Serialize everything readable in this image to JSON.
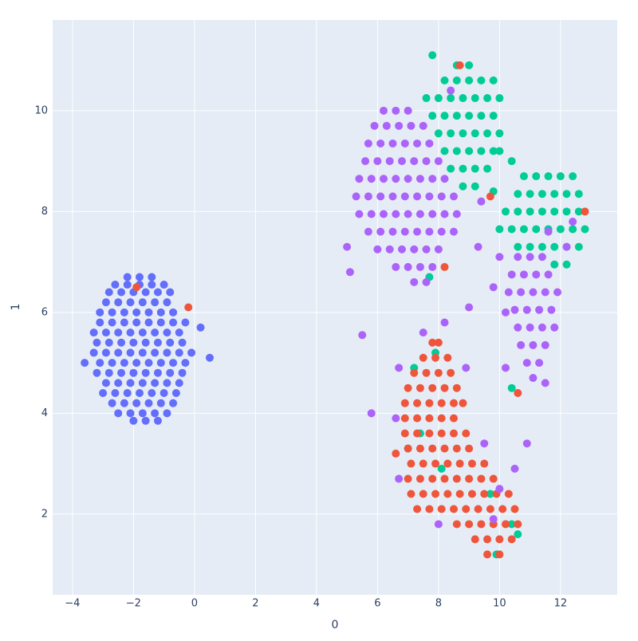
{
  "chart_data": {
    "type": "scatter",
    "x_label": "0",
    "y_label": "1",
    "xlim": [
      -4.65,
      13.86
    ],
    "ylim": [
      0.4,
      11.8
    ],
    "xticks": [
      {
        "value": -4,
        "label": "−4"
      },
      {
        "value": -2,
        "label": "−2"
      },
      0,
      2,
      4,
      6,
      8,
      10,
      12
    ],
    "yticks": [
      2,
      4,
      6,
      8,
      10
    ],
    "grid": true,
    "series": [
      {
        "color": "#636efa",
        "x": [
          -2.2,
          -1.8,
          -1.4,
          -2.6,
          -2.2,
          -1.8,
          -1.4,
          -1.0,
          -2.8,
          -2.4,
          -2.0,
          -1.6,
          -1.2,
          -0.8,
          -2.9,
          -2.5,
          -2.1,
          -1.7,
          -1.3,
          -0.9,
          -3.1,
          -2.7,
          -2.3,
          -1.9,
          -1.5,
          -1.1,
          -0.7,
          -3.1,
          -2.7,
          -2.3,
          -1.9,
          -1.5,
          -1.1,
          -0.7,
          -0.3,
          -3.3,
          -2.9,
          -2.5,
          -2.1,
          -1.7,
          -1.3,
          -0.9,
          -0.5,
          -3.2,
          -2.8,
          -2.4,
          -2.0,
          -1.6,
          -1.2,
          -0.8,
          -0.4,
          -3.3,
          -2.9,
          -2.5,
          -2.1,
          -1.7,
          -1.3,
          -0.9,
          -0.5,
          -0.1,
          -3.1,
          -2.7,
          -2.3,
          -1.9,
          -1.5,
          -1.1,
          -0.7,
          -0.3,
          -3.2,
          -2.8,
          -2.4,
          -2.0,
          -1.6,
          -1.2,
          -0.8,
          -0.4,
          -2.9,
          -2.5,
          -2.1,
          -1.7,
          -1.3,
          -0.9,
          -0.5,
          -3.0,
          -2.6,
          -2.2,
          -1.8,
          -1.4,
          -1.0,
          -0.6,
          -2.7,
          -2.3,
          -1.9,
          -1.5,
          -1.1,
          -0.7,
          -2.5,
          -2.1,
          -1.7,
          -1.3,
          -0.9,
          -2.0,
          -1.6,
          -1.2,
          0.5,
          0.2,
          -3.6
        ],
        "values": [
          6.7,
          6.7,
          6.7,
          6.55,
          6.55,
          6.55,
          6.55,
          6.55,
          6.4,
          6.4,
          6.4,
          6.4,
          6.4,
          6.4,
          6.2,
          6.2,
          6.2,
          6.2,
          6.2,
          6.2,
          6.0,
          6.0,
          6.0,
          6.0,
          6.0,
          6.0,
          6.0,
          5.8,
          5.8,
          5.8,
          5.8,
          5.8,
          5.8,
          5.8,
          5.8,
          5.6,
          5.6,
          5.6,
          5.6,
          5.6,
          5.6,
          5.6,
          5.6,
          5.4,
          5.4,
          5.4,
          5.4,
          5.4,
          5.4,
          5.4,
          5.4,
          5.2,
          5.2,
          5.2,
          5.2,
          5.2,
          5.2,
          5.2,
          5.2,
          5.2,
          5.0,
          5.0,
          5.0,
          5.0,
          5.0,
          5.0,
          5.0,
          5.0,
          4.8,
          4.8,
          4.8,
          4.8,
          4.8,
          4.8,
          4.8,
          4.8,
          4.6,
          4.6,
          4.6,
          4.6,
          4.6,
          4.6,
          4.6,
          4.4,
          4.4,
          4.4,
          4.4,
          4.4,
          4.4,
          4.4,
          4.2,
          4.2,
          4.2,
          4.2,
          4.2,
          4.2,
          4.0,
          4.0,
          4.0,
          4.0,
          4.0,
          3.85,
          3.85,
          3.85,
          5.1,
          5.7,
          5.0
        ]
      },
      {
        "color": "#00cc96",
        "x": [
          8.6,
          9.0,
          8.2,
          8.6,
          9.0,
          9.4,
          9.8,
          7.6,
          8.0,
          8.4,
          8.8,
          9.2,
          9.6,
          10.0,
          7.8,
          8.2,
          8.6,
          9.0,
          9.4,
          9.8,
          8.0,
          8.4,
          8.8,
          9.2,
          9.6,
          10.0,
          8.2,
          8.6,
          9.0,
          9.4,
          9.8,
          8.4,
          8.8,
          9.2,
          9.6,
          8.8,
          9.2,
          11.2,
          11.6,
          12.0,
          12.4,
          10.6,
          11.0,
          11.4,
          11.8,
          12.2,
          12.6,
          10.2,
          10.6,
          11.0,
          11.4,
          11.8,
          12.2,
          12.6,
          10.0,
          10.4,
          10.8,
          11.2,
          11.6,
          12.0,
          12.4,
          12.8,
          10.6,
          11.0,
          11.4,
          11.8,
          12.2,
          12.6,
          11.8,
          12.2,
          10.0,
          10.4,
          10.8,
          9.8,
          7.8,
          7.2,
          7.0,
          7.4,
          8.1,
          9.7,
          10.4,
          10.6,
          9.9,
          10.4,
          7.7,
          7.9
        ],
        "values": [
          10.9,
          10.9,
          10.6,
          10.6,
          10.6,
          10.6,
          10.6,
          10.25,
          10.25,
          10.25,
          10.25,
          10.25,
          10.25,
          10.25,
          9.9,
          9.9,
          9.9,
          9.9,
          9.9,
          9.9,
          9.55,
          9.55,
          9.55,
          9.55,
          9.55,
          9.55,
          9.2,
          9.2,
          9.2,
          9.2,
          9.2,
          8.85,
          8.85,
          8.85,
          8.85,
          8.5,
          8.5,
          8.7,
          8.7,
          8.7,
          8.7,
          8.35,
          8.35,
          8.35,
          8.35,
          8.35,
          8.35,
          8.0,
          8.0,
          8.0,
          8.0,
          8.0,
          8.0,
          8.0,
          7.65,
          7.65,
          7.65,
          7.65,
          7.65,
          7.65,
          7.65,
          7.65,
          7.3,
          7.3,
          7.3,
          7.3,
          7.3,
          7.3,
          6.95,
          6.95,
          9.2,
          9.0,
          8.7,
          8.4,
          11.1,
          4.9,
          3.3,
          3.6,
          2.9,
          2.4,
          1.8,
          1.6,
          1.2,
          4.5,
          6.7,
          5.2
        ]
      },
      {
        "color": "#ef553b",
        "x": [
          7.8,
          8.0,
          7.5,
          7.9,
          8.3,
          7.2,
          7.6,
          8.0,
          8.4,
          7.0,
          7.4,
          7.8,
          8.2,
          8.6,
          6.9,
          7.3,
          7.7,
          8.1,
          8.5,
          8.8,
          6.9,
          7.3,
          7.7,
          8.1,
          8.5,
          6.9,
          7.3,
          7.7,
          8.1,
          8.5,
          8.9,
          7.0,
          7.4,
          7.8,
          8.2,
          8.6,
          9.0,
          7.1,
          7.5,
          7.9,
          8.3,
          8.7,
          9.1,
          9.5,
          7.0,
          7.4,
          7.8,
          8.2,
          8.6,
          9.0,
          9.4,
          9.8,
          7.1,
          7.5,
          7.9,
          8.3,
          8.7,
          9.1,
          9.5,
          9.9,
          10.3,
          7.3,
          7.7,
          8.1,
          8.5,
          8.9,
          9.3,
          9.7,
          10.1,
          10.5,
          8.6,
          9.0,
          9.4,
          9.8,
          10.2,
          10.6,
          9.2,
          9.6,
          10.0,
          10.4,
          9.6,
          10.0,
          -1.9,
          -0.2,
          8.7,
          12.8,
          10.6,
          8.2,
          9.7,
          6.6
        ],
        "values": [
          5.4,
          5.4,
          5.1,
          5.1,
          5.1,
          4.8,
          4.8,
          4.8,
          4.8,
          4.5,
          4.5,
          4.5,
          4.5,
          4.5,
          4.2,
          4.2,
          4.2,
          4.2,
          4.2,
          4.2,
          3.9,
          3.9,
          3.9,
          3.9,
          3.9,
          3.6,
          3.6,
          3.6,
          3.6,
          3.6,
          3.6,
          3.3,
          3.3,
          3.3,
          3.3,
          3.3,
          3.3,
          3.0,
          3.0,
          3.0,
          3.0,
          3.0,
          3.0,
          3.0,
          2.7,
          2.7,
          2.7,
          2.7,
          2.7,
          2.7,
          2.7,
          2.7,
          2.4,
          2.4,
          2.4,
          2.4,
          2.4,
          2.4,
          2.4,
          2.4,
          2.4,
          2.1,
          2.1,
          2.1,
          2.1,
          2.1,
          2.1,
          2.1,
          2.1,
          2.1,
          1.8,
          1.8,
          1.8,
          1.8,
          1.8,
          1.8,
          1.5,
          1.5,
          1.5,
          1.5,
          1.2,
          1.2,
          6.5,
          6.1,
          10.9,
          8.0,
          4.4,
          6.9,
          8.3,
          3.2
        ]
      },
      {
        "color": "#ab63fa",
        "x": [
          6.2,
          6.6,
          7.0,
          5.9,
          6.3,
          6.7,
          7.1,
          7.5,
          5.7,
          6.1,
          6.5,
          6.9,
          7.3,
          7.7,
          5.6,
          6.0,
          6.4,
          6.8,
          7.2,
          7.6,
          8.0,
          5.4,
          5.8,
          6.2,
          6.6,
          7.0,
          7.4,
          7.8,
          8.2,
          5.3,
          5.7,
          6.1,
          6.5,
          6.9,
          7.3,
          7.7,
          8.1,
          8.5,
          5.4,
          5.8,
          6.2,
          6.6,
          7.0,
          7.4,
          7.8,
          8.2,
          8.6,
          5.7,
          6.1,
          6.5,
          6.9,
          7.3,
          7.7,
          8.1,
          8.5,
          6.0,
          6.4,
          6.8,
          7.2,
          7.6,
          8.0,
          6.6,
          7.0,
          7.4,
          7.8,
          7.2,
          7.6,
          10.6,
          11.0,
          11.4,
          10.4,
          10.8,
          11.2,
          11.6,
          10.3,
          10.7,
          11.1,
          11.5,
          11.9,
          10.5,
          10.9,
          11.3,
          11.7,
          10.6,
          11.0,
          11.4,
          11.8,
          10.7,
          11.1,
          11.5,
          10.9,
          11.3,
          11.1,
          9.3,
          10.0,
          9.8,
          10.2,
          9.0,
          8.2,
          7.5,
          6.7,
          6.6,
          5.5,
          5.8,
          5.0,
          5.1,
          8.9,
          9.5,
          10.0,
          10.5,
          10.9,
          8.0,
          9.8,
          6.7,
          11.6,
          12.2,
          12.4,
          8.4,
          9.4,
          11.5,
          10.2
        ],
        "values": [
          10.0,
          10.0,
          10.0,
          9.7,
          9.7,
          9.7,
          9.7,
          9.7,
          9.35,
          9.35,
          9.35,
          9.35,
          9.35,
          9.35,
          9.0,
          9.0,
          9.0,
          9.0,
          9.0,
          9.0,
          9.0,
          8.65,
          8.65,
          8.65,
          8.65,
          8.65,
          8.65,
          8.65,
          8.65,
          8.3,
          8.3,
          8.3,
          8.3,
          8.3,
          8.3,
          8.3,
          8.3,
          8.3,
          7.95,
          7.95,
          7.95,
          7.95,
          7.95,
          7.95,
          7.95,
          7.95,
          7.95,
          7.6,
          7.6,
          7.6,
          7.6,
          7.6,
          7.6,
          7.6,
          7.6,
          7.25,
          7.25,
          7.25,
          7.25,
          7.25,
          7.25,
          6.9,
          6.9,
          6.9,
          6.9,
          6.6,
          6.6,
          7.1,
          7.1,
          7.1,
          6.75,
          6.75,
          6.75,
          6.75,
          6.4,
          6.4,
          6.4,
          6.4,
          6.4,
          6.05,
          6.05,
          6.05,
          6.05,
          5.7,
          5.7,
          5.7,
          5.7,
          5.35,
          5.35,
          5.35,
          5.0,
          5.0,
          4.7,
          7.3,
          7.1,
          6.5,
          6.0,
          6.1,
          5.8,
          5.6,
          4.9,
          3.9,
          5.55,
          4.0,
          7.3,
          6.8,
          4.9,
          3.4,
          2.5,
          2.9,
          3.4,
          1.8,
          1.9,
          2.7,
          7.6,
          7.3,
          7.8,
          10.4,
          8.2,
          4.6,
          4.9
        ]
      }
    ]
  }
}
